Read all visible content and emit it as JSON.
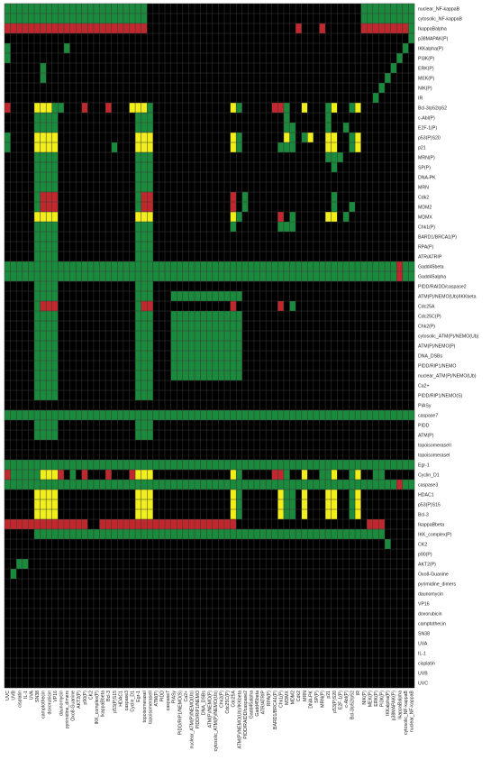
{
  "chart_data": {
    "type": "heatmap",
    "title": "",
    "xlabel": "",
    "ylabel": "",
    "grid": true,
    "colors": {
      "0": "#000000",
      "1": "#1a8a3c",
      "2": "#c0282d",
      "3": "#f2ee1a",
      "grid": "#3a3a3a"
    },
    "rows": [
      "nuclear_NF-kappaB",
      "cytosolic_NF-kappaB",
      "IkappaBalpha",
      "p38MAPAK(P)",
      "IKKalpha(P)",
      "PI3K(P)",
      "ERK(P)",
      "MEK(P)",
      "NIK(P)",
      "IR",
      "Bcl-3/p52/p52",
      "c-Abl(P)",
      "E2F-1(P)",
      "p53(P)S20",
      "p21",
      "MRN(P)",
      "SP(P)",
      "DNA-PK",
      "MRN",
      "Cdk2",
      "MDM2",
      "MDMX",
      "Chk1(P)",
      "BARD1/BRCA1(P)",
      "RPA(P)",
      "ATR/ATRIP",
      "Gadd45beta",
      "Gadd45alpha",
      "PIDD/RAIDD/caspase2",
      "ATM(P)/NEMO(Ub)/IKKbeta",
      "Cdc25A",
      "Cdc25C(P)",
      "Chk2(P)",
      "cytosolic_ATM(P)/NEMO(Ub)",
      "ATM(P)/NEMO(P)",
      "DNA_DSBs",
      "PIDD/RIP1/NEMO",
      "nuclear_ATM(P)/NEMO(Ub)",
      "Ca2+",
      "PIDD/RIP1/NEMO(S)",
      "PIASy",
      "caspase7",
      "PIDD",
      "ATM(P)",
      "topoisomeraseII",
      "topoisomeraseI",
      "Egr-1",
      "Cyclin_D1",
      "caspase3",
      "HDAC1",
      "p53(P)S15",
      "Bcl-3",
      "IkappaBbeta",
      "IKK_complex(P)",
      "CK2",
      "p90(P)",
      "AKT2(P)",
      "Oxo8-Guanine",
      "pyrimidine_dimers",
      "daunomycin",
      "VP16",
      "doxorubicin",
      "camptothecin",
      "SN38",
      "UVA",
      "IL-1",
      "cisplatin",
      "UVB",
      "UVC"
    ],
    "columns": [
      "UVC",
      "UVB",
      "cisplatin",
      "IL-1",
      "UVA",
      "SN38",
      "camptothecin",
      "doxorubicin",
      "VP16",
      "daunomycin",
      "pyrimidine_dimers",
      "Oxo8-Guanine",
      "AKT2(P)",
      "p90(P)",
      "CK2",
      "IKK_complex(P)",
      "IkappaBbeta",
      "Bcl-3",
      "p53(P)S15",
      "HDAC1",
      "caspase3",
      "Cyclin_D1",
      "Egr-1",
      "topoisomeraseI",
      "topoisomeraseII",
      "ATM(P)",
      "PIDD",
      "caspase7",
      "PIASy",
      "PIDD/RIP1/NEMO(S)",
      "Ca2+",
      "nuclear_ATM(P)/NEMO(Ub)",
      "PIDD/RIP1/NEMO",
      "DNA_DSBs",
      "ATM(P)/NEMO(P)",
      "cytosolic_ATM(P)/NEMO(Ub)",
      "Chk2(P)",
      "Cdc25C(P)",
      "Cdc25A",
      "ATM(P)/NEMO(Ub)/IKKbeta",
      "PIDD/RAIDD/caspase2",
      "Gadd45alpha",
      "Gadd45beta",
      "ATR/ATRIP",
      "RPA(P)",
      "BARD1/BRCA1(P)",
      "Chk1(P)",
      "MDMX",
      "MDM2",
      "Cdk2",
      "MRN",
      "DNA-PK",
      "SP(P)",
      "MRN(P)",
      "p21",
      "p53(P)S20",
      "E2F-1(P)",
      "c-Abl(P)",
      "Bcl-3/p52/p52",
      "IR",
      "NIK(P)",
      "MEK(P)",
      "ERK(P)",
      "PI3K(P)",
      "IKKalpha(P)",
      "p38MAPAK(P)",
      "IkappaBalpha",
      "cytosolic_NF-kappaB",
      "nuclear_NF-kappaB"
    ],
    "matrix": [
      "1111111111111111111111110000000000000000000000000000000000001111111111",
      "1111111111111111111111110000000000000000000000000000000000001111111111",
      "2222222222222222222222220000000000000000000000000200020000002222222212",
      "0000000000000000000000000000000000000000000000000000000000000000000010",
      "1000000000100000000000000000000000000000000000000000000000000000000100",
      "1000000000000000000000000000000000000000000000000000000000000000001000",
      "0000001000000000000000000000000000000000000000000000000000000000010000",
      "0000001000000000000000000000000000000000000000000000000000000000100000",
      "0000000000000000000000000000000000000000000000000000000000000001000000",
      "0000000000000000000000000000000000000000000000000000000000000010000000",
      "2000033311000200020003331000000000000031000002210030001300130000000000",
      "0000011110000000000000111000000000000000000000010000001000000000000000",
      "0000011110000000000000111000000000000000000000011000001001000000000000",
      "1000033330000000000000333000000000000031000000031013003300130000000000",
      "1000033330000000001000333000000000000031000000111000003300130000000000",
      "0000011110000000000000111000000000000000000000000000001110000000000000",
      "0000011110000000000000111000000000000000000000000000000100000000000000",
      "0000011110000000000000111000000000000000000000000000000000000000000000",
      "0000011110000000000000111000000000000000000000000000000000000000000000",
      "0000012220000000000000122000000000000020100000000000000100000000000000",
      "0000012220000000000000122000000000000020100000000000000100100000000000",
      "0000033330000000000000333000000000000031000000201000003301000000000000",
      "0000011110000000000000111000000000000010000000111000000000000000000000",
      "0000011110000000000000111000000000000000000000000000000000000000000000",
      "0000011110000000000000111000000000000000000000000000000000000000000000",
      "0000011110000000000000111000000000000000000000000000000000000000000000",
      "1111111111111111111111111111111111111111111111111111111111111111112111",
      "1111111111111111111111111111111111111111111111111111111111111111112111",
      "0000011110000000000000111000000000000000000000000000000000000000000000",
      "0000011110000000000000111000111111111111000000000000000000000000000000",
      "0000012220000000000000122000000000000020000000201000000000000000000000",
      "0000011110000000000000111000111111111111000000000000000000000000000000",
      "0000011110000000000000111000111111111111000000000000000000000000000000",
      "0000011110000000000000111000111111111111000000000000000000000000000000",
      "0000011110000000000000111000111111111111000000000000000000000000000000",
      "0000011110000000000000111000111111111111000000000000000000000000000000",
      "0000011110000000000000111000111111111111000000000000000000000000000000",
      "0000011110000000000000111000111111111111000000000000000000000000000000",
      "0000011110000000000000111000000000000000000000000000000000000000000000",
      "0000011110000000000000111000000000000000000000000000000000000000000000",
      "0000000000000000000000000000000000000000000000000000000000000000000000",
      "1111111111111111111111111111111111111111111111111111111111111111111111",
      "0000011110000000000000111000000000000000000000000000000000000000000000",
      "0000011110000000000000111000000000000000000000000000000000000000000000",
      "0000000000000000000000000000000000000000000000000000000000000000000000",
      "0000000000000000000000000000000000000000000000000000000000000000000000",
      "1111111111111111111111111111111111111111111111111111111111111111111111",
      "2111113332010200020002333000000000000031000002210030011300130011000000",
      "1111111111111111111111111111111111111111111111111111111111111111112111",
      "0000033330000000000000333000000000000031000000311030003300130000000000",
      "0000033330000000000000333000000000000031000000311030003300130000000000",
      "0000033330000000000000333000000000000031000000311030003300130000000000",
      "2222222222222200222222222222222222222220000000000000000000000222000000",
      "0000011111111111111111111111111111111111111111111111111111111111000000",
      "0000000000000000000000000000000000000000000000000000000000000000100000",
      "0000000000000000000000000000000000000000000000000000000000000000000000",
      "0011000000000000000000000000000000000000000000000000000000000000000000",
      "0100000000000000000000000000000000000000000000000000000000000000000000",
      "0000000000000000000000000000000000000000000000000000000000000000000000",
      "0000000000000000000000000000000000000000000000000000000000000000000000",
      "0000000000000000000000000000000000000000000000000000000000000000000000",
      "0000000000000000000000000000000000000000000000000000000000000000000000",
      "0000000000000000000000000000000000000000000000000000000000000000000000",
      "0000000000000000000000000000000000000000000000000000000000000000000000",
      "0000000000000000000000000000000000000000000000000000000000000000000000",
      "0000000000000000000000000000000000000000000000000000000000000000000000",
      "0000000000000000000000000000000000000000000000000000000000000000000000",
      "0000000000000000000000000000000000000000000000000000000000000000000000",
      "0000000000000000000000000000000000000000000000000000000000000000000000"
    ]
  }
}
